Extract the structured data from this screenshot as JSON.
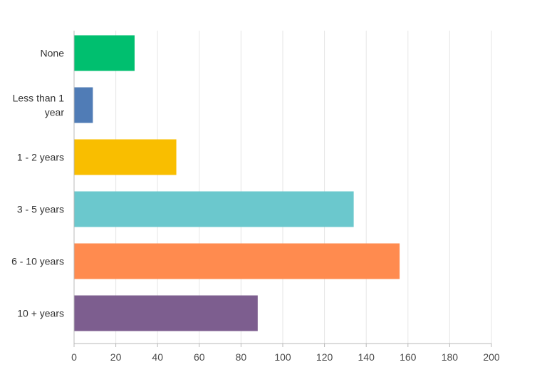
{
  "chart_data": {
    "type": "bar",
    "orientation": "horizontal",
    "categories": [
      "None",
      "Less than 1 year",
      "1 - 2 years",
      "3 - 5 years",
      "6 - 10 years",
      "10 + years"
    ],
    "category_label_lines": [
      [
        "None"
      ],
      [
        "Less than 1",
        "year"
      ],
      [
        "1 - 2 years"
      ],
      [
        "3 - 5 years"
      ],
      [
        "6 - 10 years"
      ],
      [
        "10 + years"
      ]
    ],
    "values": [
      29,
      9,
      49,
      134,
      156,
      88
    ],
    "colors": [
      "#00bf6f",
      "#507cb6",
      "#f9be00",
      "#6bc8cd",
      "#ff8b4f",
      "#7d5e8f"
    ],
    "xlim": [
      0,
      200
    ],
    "xticks": [
      0,
      20,
      40,
      60,
      80,
      100,
      120,
      140,
      160,
      180,
      200
    ],
    "grid": true,
    "title": "",
    "xlabel": "",
    "ylabel": ""
  }
}
